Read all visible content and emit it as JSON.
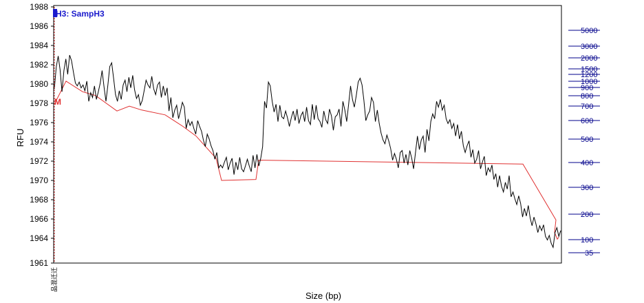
{
  "chart_data": {
    "type": "line",
    "title": "H3: SampH3",
    "xlabel": "Size (bp)",
    "ylabel": "RFU",
    "ylim": [
      1961,
      1988
    ],
    "y_ticks": [
      1961,
      1964,
      1966,
      1968,
      1970,
      1972,
      1974,
      1976,
      1978,
      1980,
      1982,
      1984,
      1986,
      1988
    ],
    "size_ladder": [
      "5000",
      "3000",
      "2000",
      "1500",
      "1200",
      "1000",
      "900",
      "800",
      "700",
      "600",
      "500",
      "400",
      "300",
      "200",
      "100",
      "35"
    ],
    "marker_label": "M",
    "x_tick_text": "品混迁迁",
    "colors": {
      "trace": "#000000",
      "baseline": "#e03030",
      "ladder": "#00008b",
      "title": "#1a1acc"
    },
    "series": [
      {
        "values": [
          1979.5,
          1981.8,
          1982.9,
          1981.5,
          1979.2,
          1981.4,
          1982.6,
          1981.0,
          1983.0,
          1982.4,
          1981.2,
          1980.1,
          1979.8,
          1980.2,
          1979.6,
          1979.9,
          1979.3,
          1980.3,
          1978.2,
          1979.1,
          1978.6,
          1979.8,
          1978.4,
          1979.2,
          1980.1,
          1981.4,
          1979.7,
          1978.2,
          1979.9,
          1981.8,
          1982.2,
          1980.6,
          1978.9,
          1978.2,
          1979.3,
          1978.4,
          1979.9,
          1980.4,
          1979.2,
          1980.7,
          1979.6,
          1980.9,
          1979.4,
          1978.5,
          1978.9,
          1977.8,
          1978.3,
          1979.3,
          1980.4,
          1979.9,
          1979.6,
          1980.8,
          1979.5,
          1978.9,
          1979.9,
          1980.2,
          1978.6,
          1979.8,
          1978.8,
          1979.6,
          1977.2,
          1978.6,
          1976.5,
          1977.3,
          1977.8,
          1976.4,
          1977.2,
          1978.1,
          1977.6,
          1975.4,
          1976.3,
          1975.7,
          1976.1,
          1975.4,
          1974.8,
          1976.2,
          1975.6,
          1975.1,
          1974.2,
          1973.5,
          1974.8,
          1974.3,
          1973.6,
          1973.1,
          1972.2,
          1972.9,
          1971.3,
          1971.6,
          1971.3,
          1971.9,
          1972.4,
          1971.1,
          1971.8,
          1972.3,
          1970.6,
          1971.9,
          1971.1,
          1972.4,
          1971.2,
          1970.9,
          1971.5,
          1972.2,
          1971.5,
          1970.9,
          1972.6,
          1971.3,
          1972.7,
          1971.5,
          1972.3,
          1973.5,
          1978.2,
          1977.5,
          1980.2,
          1979.8,
          1978.2,
          1977.1,
          1977.9,
          1976.1,
          1977.8,
          1976.6,
          1976.4,
          1977.2,
          1976.5,
          1975.6,
          1976.5,
          1977.2,
          1976.2,
          1977.4,
          1975.9,
          1976.7,
          1977.1,
          1976.1,
          1977.6,
          1976.2,
          1975.8,
          1977.9,
          1976.3,
          1977.8,
          1976.4,
          1976.1,
          1975.5,
          1977.2,
          1976.3,
          1975.9,
          1977.4,
          1976.7,
          1975.2,
          1976.6,
          1976.8,
          1977.4,
          1975.6,
          1978.2,
          1977.3,
          1976.1,
          1977.9,
          1979.8,
          1978.4,
          1977.6,
          1978.8,
          1980.2,
          1980.6,
          1979.9,
          1978.3,
          1976.2,
          1976.8,
          1977.2,
          1978.6,
          1978.1,
          1976.1,
          1977.3,
          1975.9,
          1974.9,
          1974.2,
          1973.8,
          1974.7,
          1974.1,
          1973.3,
          1972.1,
          1972.8,
          1972.2,
          1971.3,
          1972.9,
          1973.1,
          1971.8,
          1972.7,
          1971.6,
          1973.1,
          1972.3,
          1971.2,
          1972.9,
          1974.6,
          1973.2,
          1974.2,
          1974.6,
          1972.9,
          1975.3,
          1974.1,
          1976.1,
          1976.9,
          1976.4,
          1978.2,
          1977.6,
          1978.4,
          1977.3,
          1977.8,
          1976.4,
          1975.9,
          1976.3,
          1975.4,
          1975.9,
          1974.6,
          1975.8,
          1974.3,
          1975.1,
          1973.6,
          1972.9,
          1973.6,
          1974.1,
          1972.4,
          1973.2,
          1971.8,
          1972.2,
          1973.1,
          1971.2,
          1971.9,
          1972.5,
          1970.5,
          1971.3,
          1970.9,
          1971.6,
          1970.1,
          1970.7,
          1969.3,
          1970.5,
          1969.4,
          1968.8,
          1969.8,
          1969.1,
          1970.5,
          1968.3,
          1968.8,
          1968.1,
          1967.5,
          1968.4,
          1967.6,
          1966.2,
          1967.1,
          1966.3,
          1967.4,
          1966.1,
          1965.3,
          1966.2,
          1965.5,
          1964.6,
          1965.3,
          1964.8,
          1965.4,
          1964.2,
          1963.8,
          1964.3,
          1963.4,
          1962.9,
          1964.6,
          1965.1,
          1964.2,
          1964.8
        ]
      }
    ],
    "baseline": [
      1977.9,
      1980.3,
      1979.2,
      1978.8,
      1977.2,
      1977.7,
      1977.3,
      1976.8,
      1975.6,
      1974.6,
      1972.3,
      1970.0,
      1970.1,
      1972.1,
      1971.7,
      1965.9,
      1964.6,
      1963.9,
      1964.1
    ]
  }
}
